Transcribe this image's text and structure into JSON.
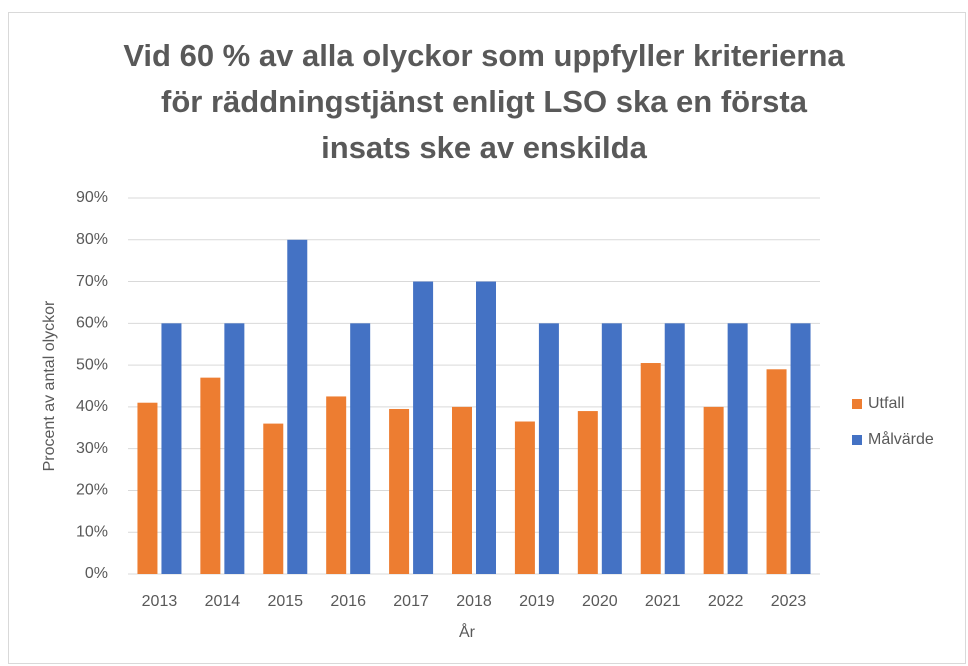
{
  "chart_data": {
    "type": "bar",
    "title": [
      "Vid 60 % av alla olyckor som uppfyller kriterierna",
      "för räddningstjänst enligt LSO ska en första",
      "insats ske av enskilda"
    ],
    "x_label": "År",
    "y_label": "Procent av antal olyckor",
    "categories": [
      "2013",
      "2014",
      "2015",
      "2016",
      "2017",
      "2018",
      "2019",
      "2020",
      "2021",
      "2022",
      "2023"
    ],
    "series": [
      {
        "name": "Utfall",
        "color": "#ed7d31",
        "values": [
          41,
          47,
          36,
          42.5,
          39.5,
          40,
          36.5,
          39,
          50.5,
          40,
          49
        ]
      },
      {
        "name": "Målvärde",
        "color": "#4472c4",
        "values": [
          60,
          60,
          80,
          60,
          70,
          70,
          60,
          60,
          60,
          60,
          60
        ]
      }
    ],
    "ylim": [
      0,
      90
    ],
    "yticks": [
      {
        "value": 0,
        "label": "0%"
      },
      {
        "value": 10,
        "label": "10%"
      },
      {
        "value": 20,
        "label": "20%"
      },
      {
        "value": 30,
        "label": "30%"
      },
      {
        "value": 40,
        "label": "40%"
      },
      {
        "value": 50,
        "label": "50%"
      },
      {
        "value": 60,
        "label": "60%"
      },
      {
        "value": 70,
        "label": "70%"
      },
      {
        "value": 80,
        "label": "80%"
      },
      {
        "value": 90,
        "label": "90%"
      }
    ],
    "grid": true,
    "legend": "right"
  }
}
